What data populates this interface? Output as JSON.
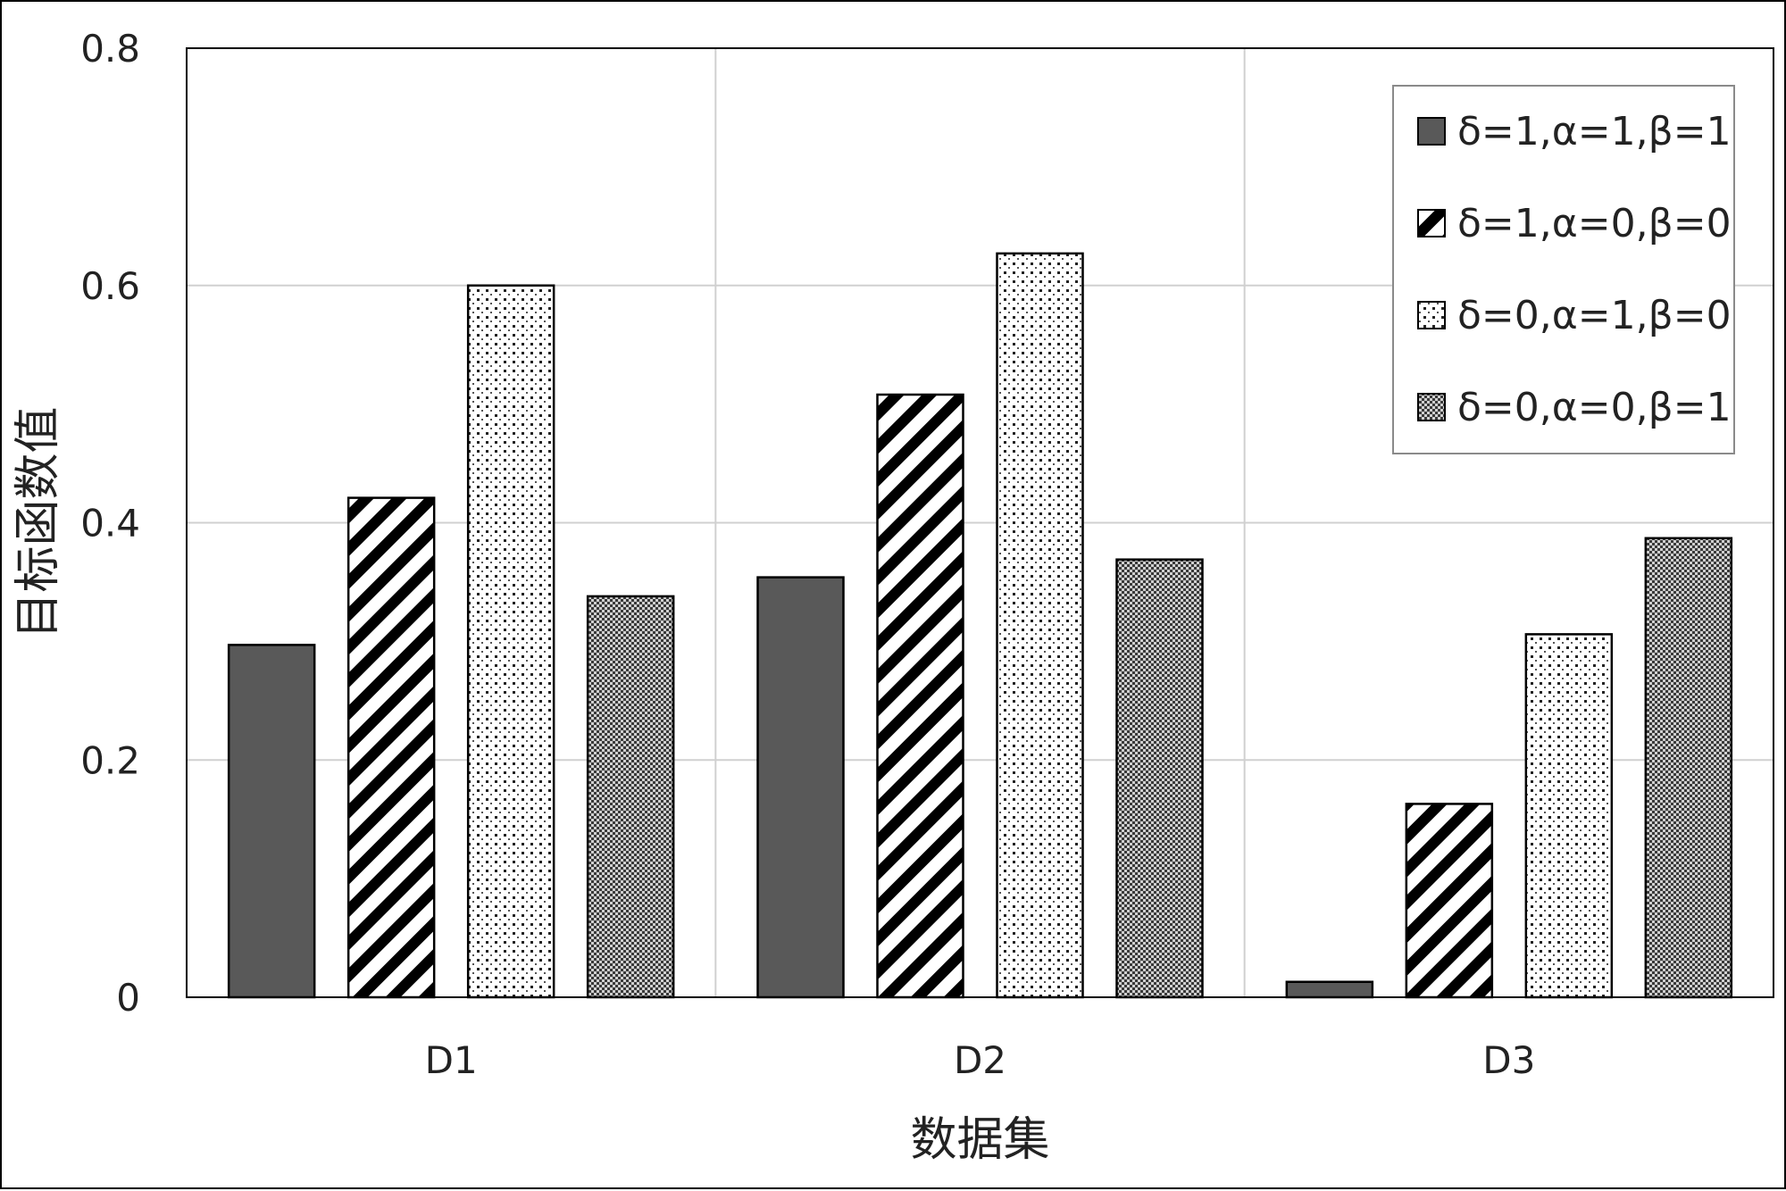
{
  "chart_data": {
    "type": "bar",
    "xlabel": "数据集",
    "ylabel": "目标函数值",
    "categories": [
      "D1",
      "D2",
      "D3"
    ],
    "ylim": [
      0,
      0.8
    ],
    "yticks": [
      0,
      0.2,
      0.4,
      0.6,
      0.8
    ],
    "ytick_labels": [
      "0",
      "0.2",
      "0.4",
      "0.6",
      "0.8"
    ],
    "grid": true,
    "legend_position": "top-right",
    "series": [
      {
        "name": "δ=1,α=1,β=1",
        "fill": "solid-dark-gray",
        "color": "#595959",
        "values": [
          0.297,
          0.354,
          0.013
        ]
      },
      {
        "name": "δ=1,α=0,β=0",
        "fill": "diagonal-stripes",
        "color": "#000000",
        "values": [
          0.421,
          0.508,
          0.163
        ]
      },
      {
        "name": "δ=0,α=1,β=0",
        "fill": "dots",
        "color": "#000000",
        "values": [
          0.6,
          0.627,
          0.306
        ]
      },
      {
        "name": "δ=0,α=0,β=1",
        "fill": "checkered-gray",
        "color": "#7a7a7a",
        "values": [
          0.338,
          0.369,
          0.387
        ]
      }
    ]
  }
}
